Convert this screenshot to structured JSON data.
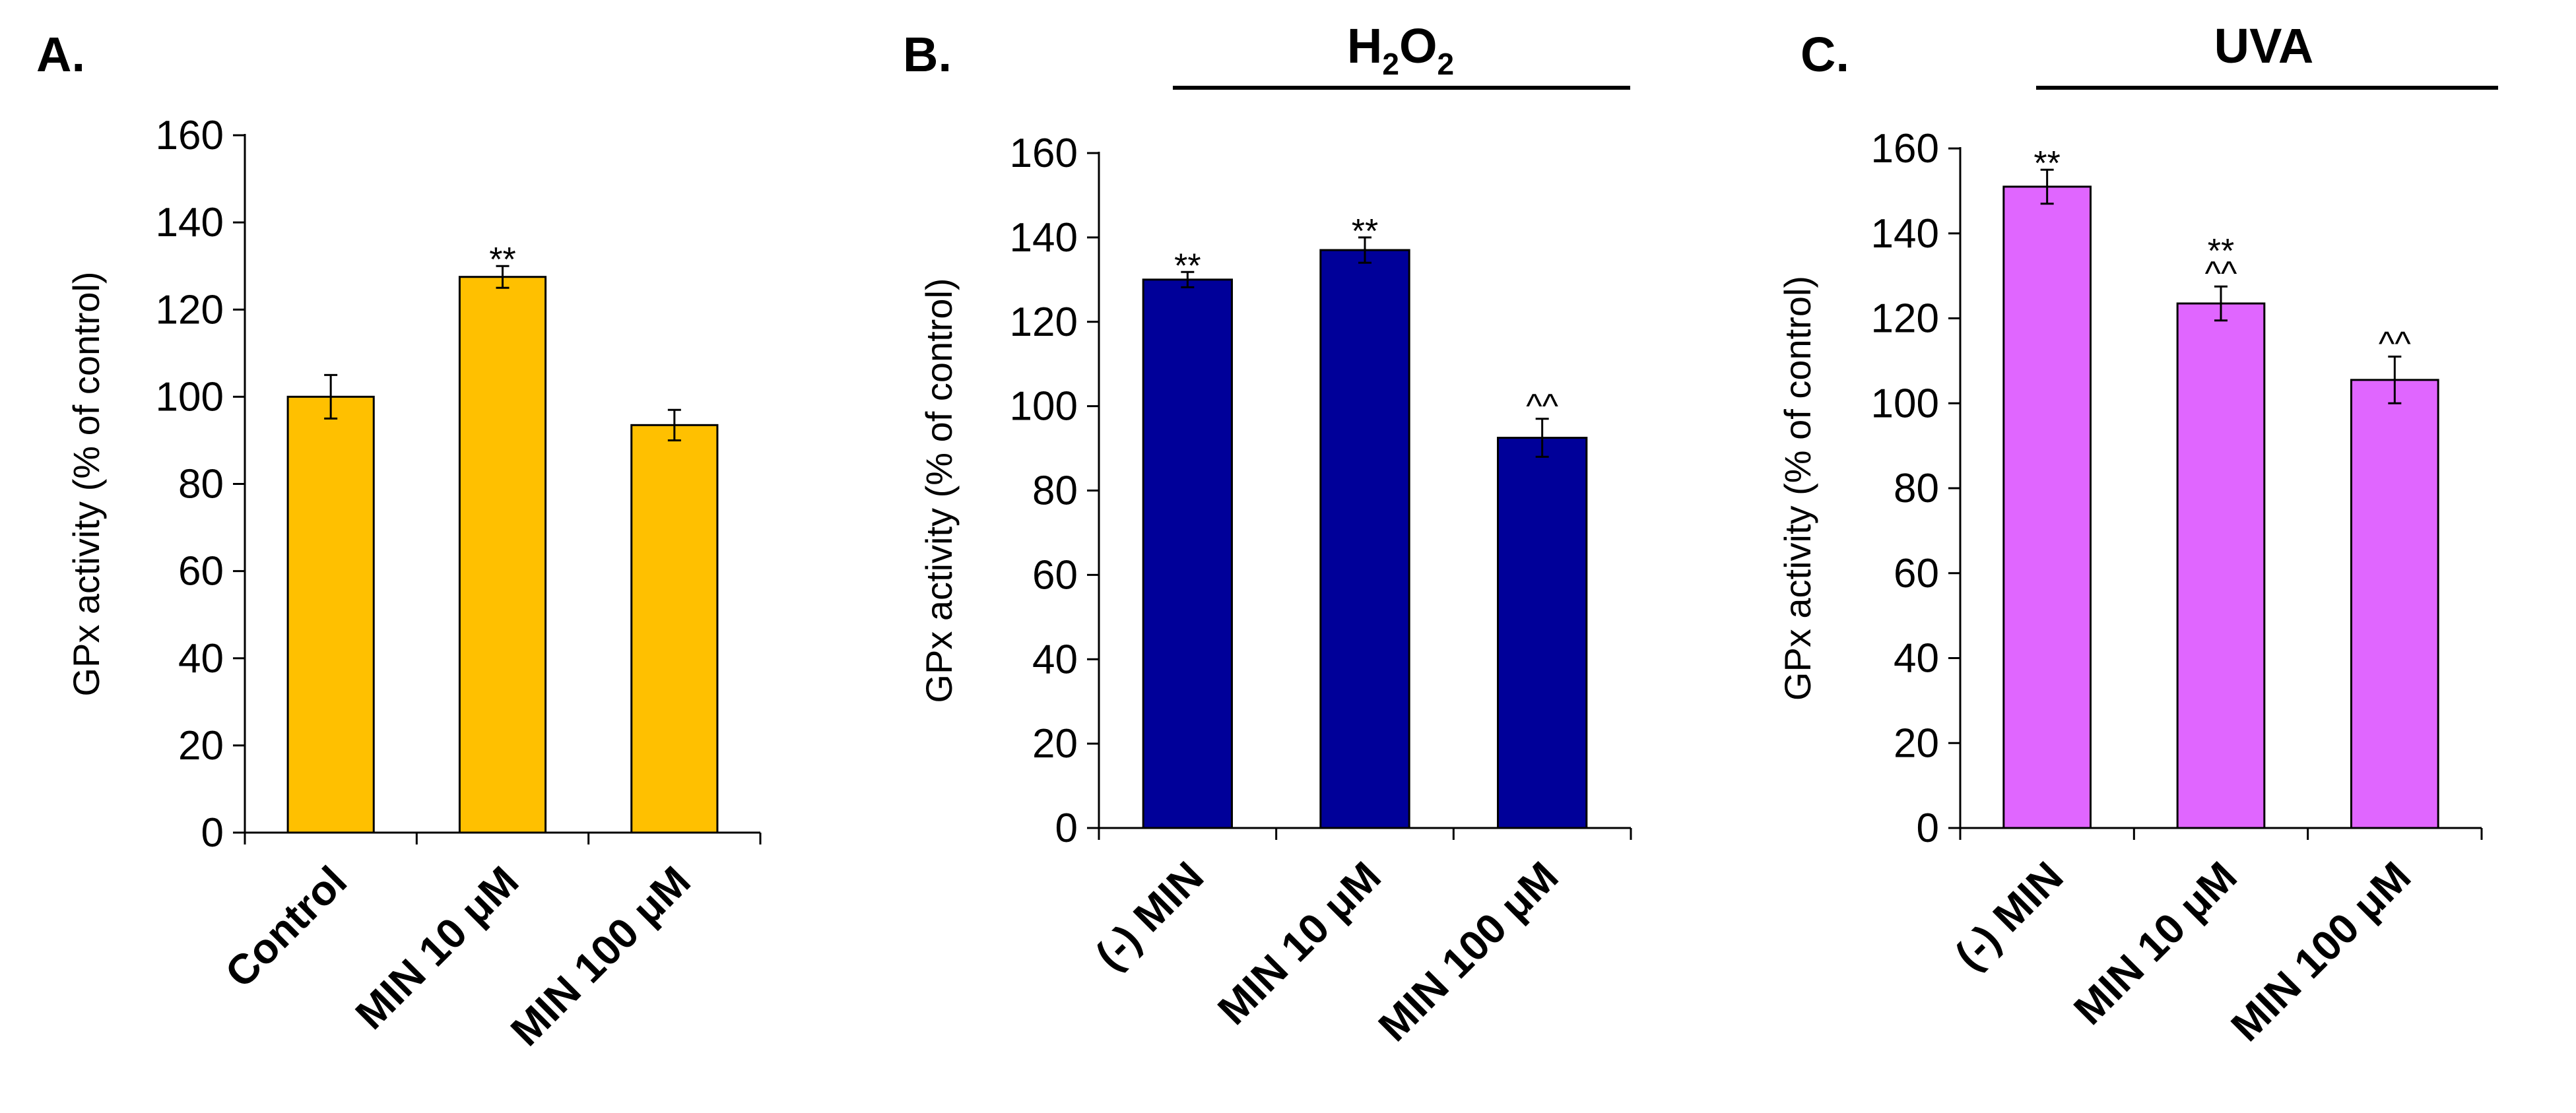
{
  "chart_data": [
    {
      "type": "bar",
      "panel": "A.",
      "treatment": null,
      "categories": [
        "Control",
        "MIN 10 μM",
        "MIN 100 μM"
      ],
      "values": [
        100,
        127.5,
        93.5
      ],
      "errors": [
        5,
        2.5,
        3.5
      ],
      "annotations": [
        [],
        [
          "**"
        ],
        []
      ],
      "color": "#FFC000",
      "ylabel": "GPx activity (% of control)",
      "ylim": [
        0,
        160
      ],
      "yticks": [
        0,
        20,
        40,
        60,
        80,
        100,
        120,
        140,
        160
      ],
      "grid": false
    },
    {
      "type": "bar",
      "panel": "B.",
      "treatment": {
        "main": "H",
        "sub1": "2",
        "mid": "O",
        "sub2": "2"
      },
      "categories": [
        "(-) MIN",
        "MIN 10 μM",
        "MIN 100 μM"
      ],
      "values": [
        130,
        137,
        92.5
      ],
      "errors": [
        1.8,
        3,
        4.5
      ],
      "annotations": [
        [
          "**"
        ],
        [
          "**"
        ],
        [
          "^^"
        ]
      ],
      "color": "#000099",
      "ylabel": "GPx activity (% of control)",
      "ylim": [
        0,
        160
      ],
      "yticks": [
        0,
        20,
        40,
        60,
        80,
        100,
        120,
        140,
        160
      ],
      "grid": false
    },
    {
      "type": "bar",
      "panel": "C.",
      "treatment": {
        "main": "UVA"
      },
      "categories": [
        "(-) MIN",
        "MIN 10 μM",
        "MIN 100 μM"
      ],
      "values": [
        151,
        123.5,
        105.5
      ],
      "errors": [
        4,
        4,
        5.5
      ],
      "annotations": [
        [
          "**"
        ],
        [
          "**",
          "^^"
        ],
        [
          "^^"
        ]
      ],
      "color": "#E066FF",
      "ylabel": "GPx activity (% of control)",
      "ylim": [
        0,
        160
      ],
      "yticks": [
        0,
        20,
        40,
        60,
        80,
        100,
        120,
        140,
        160
      ],
      "grid": false
    }
  ]
}
